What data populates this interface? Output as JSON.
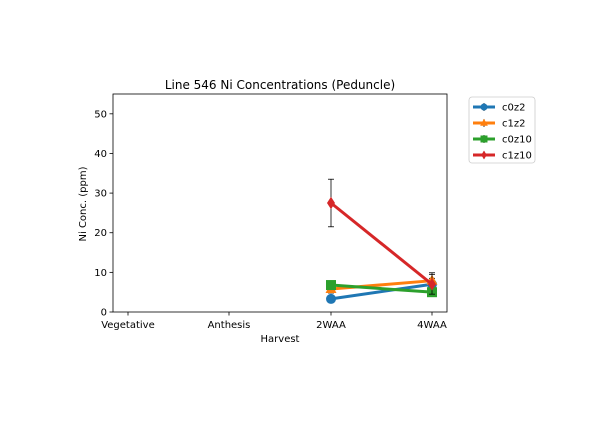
{
  "chart_data": {
    "type": "line",
    "title": "Line 546 Ni Concentrations (Peduncle)",
    "xlabel": "Harvest",
    "ylabel": "Ni Conc. (ppm)",
    "categories": [
      "Vegetative",
      "Anthesis",
      "2WAA",
      "4WAA"
    ],
    "ylim": [
      0,
      55
    ],
    "yticks": [
      0,
      10,
      20,
      30,
      40,
      50
    ],
    "grid": false,
    "legend_position": "outside-right",
    "series": [
      {
        "name": "c0z2",
        "color": "#1f77b4",
        "marker": "circle",
        "values": [
          null,
          null,
          3.3,
          7.0
        ],
        "err": [
          null,
          null,
          0.5,
          1.5
        ]
      },
      {
        "name": "c1z2",
        "color": "#ff7f0e",
        "marker": "triangle-up",
        "values": [
          null,
          null,
          5.8,
          7.9
        ],
        "err": [
          null,
          null,
          1.0,
          2.0
        ]
      },
      {
        "name": "c0z10",
        "color": "#2ca02c",
        "marker": "square",
        "values": [
          null,
          null,
          6.8,
          5.0
        ],
        "err": [
          null,
          null,
          1.0,
          0.8
        ]
      },
      {
        "name": "c1z10",
        "color": "#d62728",
        "marker": "diamond",
        "values": [
          null,
          null,
          27.5,
          7.0
        ],
        "err": [
          null,
          null,
          6.0,
          2.5
        ]
      }
    ]
  }
}
